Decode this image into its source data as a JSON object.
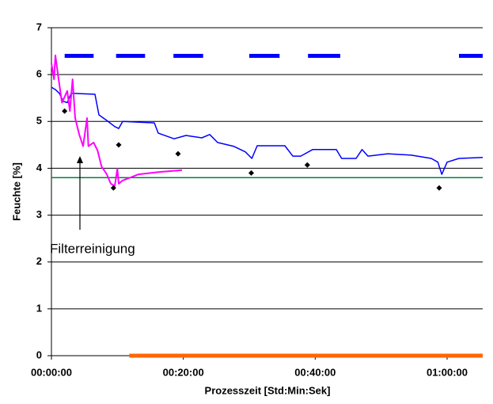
{
  "chart_data": {
    "type": "line",
    "xlabel": "Prozesszeit [Std:Min:Sek]",
    "ylabel": "Feuchte [%]",
    "annotation": "Filterreinigung",
    "xlim": [
      0,
      65.4
    ],
    "ylim": [
      0,
      7
    ],
    "xticks": [
      {
        "value": 0,
        "label": "00:00:00"
      },
      {
        "value": 20,
        "label": "00:20:00"
      },
      {
        "value": 40,
        "label": "00:40:00"
      },
      {
        "value": 60,
        "label": "01:00:00"
      }
    ],
    "yticks": [
      0,
      1,
      2,
      3,
      4,
      5,
      6,
      7
    ],
    "grid": true,
    "series": [
      {
        "color": "#0000ff",
        "linewidth": 5,
        "x": [
          2.0,
          6.4,
          null,
          9.8,
          14.2,
          null,
          18.5,
          23.0,
          null,
          30.0,
          34.6,
          null,
          38.9,
          43.8,
          null,
          61.8,
          65.4
        ],
        "values": [
          6.4,
          6.4,
          null,
          6.4,
          6.4,
          null,
          6.4,
          6.4,
          null,
          6.4,
          6.4,
          null,
          6.4,
          6.4,
          null,
          6.4,
          6.4
        ]
      },
      {
        "color": "#ff6600",
        "linewidth": 5,
        "x": [
          11.8,
          65.4
        ],
        "values": [
          0,
          0
        ]
      },
      {
        "color": "#008040",
        "linewidth": 1.5,
        "x": [
          0,
          65.4
        ],
        "values": [
          3.8,
          3.8
        ]
      },
      {
        "color": "#0000ff",
        "linewidth": 1.5,
        "x": [
          0,
          0.6,
          1.2,
          1.8,
          2.4,
          3.0,
          6.6,
          7.2,
          8.4,
          9.6,
          10.2,
          10.8,
          15.6,
          16.2,
          18.6,
          20.4,
          22.8,
          24.0,
          25.2,
          27.6,
          29.4,
          30.4,
          31.2,
          35.4,
          36.6,
          37.8,
          39.6,
          43.2,
          44.0,
          46.2,
          47.1,
          48.0,
          51.0,
          54.6,
          57.6,
          58.6,
          59.2,
          60.0,
          61.8,
          65.4
        ],
        "values": [
          5.73,
          5.68,
          5.6,
          5.43,
          5.4,
          5.6,
          5.58,
          5.14,
          5.02,
          4.89,
          4.85,
          5.0,
          4.97,
          4.75,
          4.63,
          4.7,
          4.65,
          4.72,
          4.55,
          4.47,
          4.35,
          4.21,
          4.48,
          4.48,
          4.26,
          4.26,
          4.4,
          4.4,
          4.21,
          4.21,
          4.4,
          4.26,
          4.31,
          4.28,
          4.21,
          4.13,
          3.87,
          4.13,
          4.21,
          4.23
        ]
      },
      {
        "color": "#ff00ff",
        "linewidth": 2,
        "x": [
          0,
          0.4,
          0.6,
          1.0,
          1.6,
          2.4,
          2.8,
          3.2,
          3.6,
          4.2,
          4.8,
          5.4,
          5.6,
          6.4,
          7.0,
          7.6,
          8.4,
          9.0,
          9.6,
          10.0,
          10.2,
          10.8,
          11.4,
          13.2,
          16.2,
          19.8
        ],
        "values": [
          6.24,
          5.9,
          6.41,
          5.99,
          5.4,
          5.65,
          5.22,
          5.9,
          5.07,
          4.73,
          4.47,
          5.07,
          4.47,
          4.55,
          4.38,
          4.04,
          3.87,
          3.67,
          3.62,
          3.99,
          3.67,
          3.74,
          3.77,
          3.87,
          3.92,
          3.96
        ]
      },
      {
        "type": "scatter",
        "color": "#000000",
        "marker": "diamond",
        "x": [
          2.0,
          9.4,
          10.2,
          19.2,
          30.3,
          38.8,
          58.8
        ],
        "values": [
          5.22,
          3.58,
          4.5,
          4.31,
          3.9,
          4.07,
          3.58
        ]
      }
    ]
  }
}
